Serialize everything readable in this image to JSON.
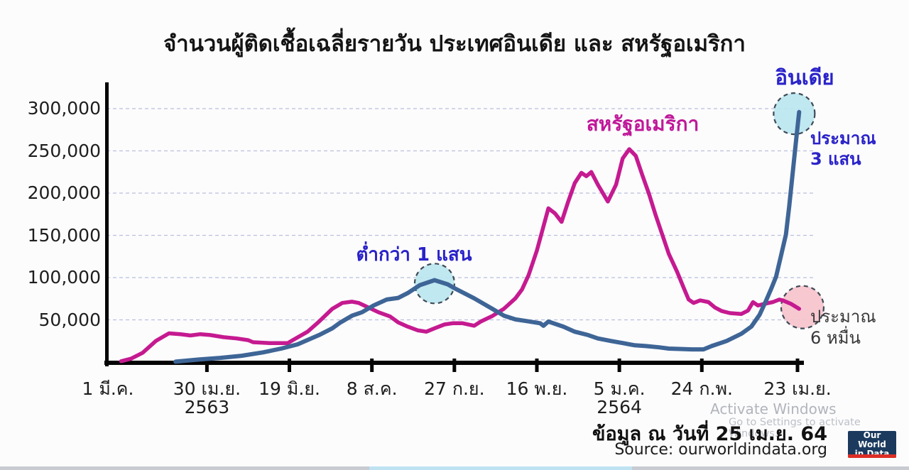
{
  "title": "จำนวนผู้ติดเชื้อเฉลี่ยรายวัน ประเทศอินเดีย และ สหรัฐอเมริกา",
  "chart_data": {
    "type": "line",
    "title": "จำนวนผู้ติดเชื้อเฉลี่ยรายวัน ประเทศอินเดีย และ สหรัฐอเมริกา",
    "x_unit": "days since 1 มี.ค. 2563",
    "x_range": [
      0,
      418
    ],
    "ylim": [
      0,
      330000
    ],
    "grid": "horizontal-dashed",
    "grid_color": "#b9c0dd",
    "yticks": [
      50000,
      100000,
      150000,
      200000,
      250000,
      300000
    ],
    "ytick_labels": [
      "50,000",
      "100,000",
      "150,000",
      "200,000",
      "250,000",
      "300,000"
    ],
    "xticks": [
      {
        "day": 0,
        "label": "1 มี.ค.",
        "tick": false
      },
      {
        "day": 60,
        "label": "30 เม.ย.",
        "tick": true
      },
      {
        "day": 110,
        "label": "19 มิ.ย.",
        "tick": true
      },
      {
        "day": 160,
        "label": "8 ส.ค.",
        "tick": true
      },
      {
        "day": 210,
        "label": "27 ก.ย.",
        "tick": true
      },
      {
        "day": 260,
        "label": "16 พ.ย.",
        "tick": true
      },
      {
        "day": 310,
        "label": "5 ม.ค.",
        "tick": true
      },
      {
        "day": 360,
        "label": "24 ก.พ.",
        "tick": true
      },
      {
        "day": 418,
        "label": "23 เม.ย.",
        "tick": true
      }
    ],
    "year_labels": [
      {
        "day": 60,
        "label": "2563"
      },
      {
        "day": 310,
        "label": "2564"
      }
    ],
    "series": [
      {
        "name": "สหรัฐอเมริกา",
        "color": "#c51a90",
        "stroke_width": 5.5,
        "points": [
          [
            8,
            1000
          ],
          [
            14,
            4000
          ],
          [
            21,
            11000
          ],
          [
            29,
            25000
          ],
          [
            37,
            34000
          ],
          [
            44,
            33000
          ],
          [
            50,
            31500
          ],
          [
            56,
            33000
          ],
          [
            62,
            32000
          ],
          [
            70,
            29500
          ],
          [
            78,
            28000
          ],
          [
            85,
            26000
          ],
          [
            88,
            23500
          ],
          [
            98,
            22500
          ],
          [
            109,
            22500
          ],
          [
            112,
            26000
          ],
          [
            121,
            36000
          ],
          [
            128,
            48000
          ],
          [
            136,
            63000
          ],
          [
            142,
            70000
          ],
          [
            148,
            71500
          ],
          [
            152,
            70000
          ],
          [
            157,
            65500
          ],
          [
            164,
            59000
          ],
          [
            171,
            54000
          ],
          [
            176,
            47000
          ],
          [
            181,
            42500
          ],
          [
            188,
            37500
          ],
          [
            193,
            36000
          ],
          [
            198,
            40000
          ],
          [
            204,
            44500
          ],
          [
            209,
            46000
          ],
          [
            215,
            46000
          ],
          [
            222,
            43000
          ],
          [
            226,
            48000
          ],
          [
            233,
            54500
          ],
          [
            240,
            63000
          ],
          [
            247,
            75500
          ],
          [
            251,
            86000
          ],
          [
            255,
            103000
          ],
          [
            260,
            132000
          ],
          [
            267,
            182000
          ],
          [
            271,
            176000
          ],
          [
            275,
            166000
          ],
          [
            279,
            190000
          ],
          [
            283,
            212000
          ],
          [
            287,
            224000
          ],
          [
            290,
            220000
          ],
          [
            293,
            225000
          ],
          [
            297,
            210000
          ],
          [
            303,
            190000
          ],
          [
            308,
            210000
          ],
          [
            312,
            241000
          ],
          [
            316,
            252000
          ],
          [
            320,
            244000
          ],
          [
            324,
            221000
          ],
          [
            328,
            199000
          ],
          [
            332,
            174000
          ],
          [
            336,
            151000
          ],
          [
            340,
            128000
          ],
          [
            345,
            107000
          ],
          [
            349,
            88000
          ],
          [
            352,
            74000
          ],
          [
            355,
            70000
          ],
          [
            359,
            73000
          ],
          [
            364,
            71000
          ],
          [
            368,
            64500
          ],
          [
            372,
            60500
          ],
          [
            377,
            58000
          ],
          [
            384,
            57000
          ],
          [
            388,
            61000
          ],
          [
            391,
            71000
          ],
          [
            394,
            67000
          ],
          [
            398,
            69000
          ],
          [
            403,
            71000
          ],
          [
            407,
            74000
          ],
          [
            409,
            73000
          ],
          [
            414,
            69000
          ],
          [
            419,
            63000
          ]
        ]
      },
      {
        "name": "อินเดีย",
        "color": "#3e6596",
        "stroke_width": 6,
        "points": [
          [
            41,
            500
          ],
          [
            55,
            3000
          ],
          [
            68,
            5000
          ],
          [
            81,
            7500
          ],
          [
            94,
            11500
          ],
          [
            105,
            16000
          ],
          [
            115,
            21000
          ],
          [
            128,
            32000
          ],
          [
            136,
            40000
          ],
          [
            141,
            47000
          ],
          [
            148,
            55000
          ],
          [
            154,
            59000
          ],
          [
            161,
            67000
          ],
          [
            169,
            74000
          ],
          [
            176,
            76000
          ],
          [
            182,
            82000
          ],
          [
            189,
            91000
          ],
          [
            198,
            97000
          ],
          [
            206,
            92000
          ],
          [
            211,
            86500
          ],
          [
            222,
            75500
          ],
          [
            233,
            63000
          ],
          [
            240,
            55000
          ],
          [
            247,
            50500
          ],
          [
            254,
            48500
          ],
          [
            262,
            46000
          ],
          [
            264,
            43000
          ],
          [
            267,
            48000
          ],
          [
            270,
            46000
          ],
          [
            276,
            42000
          ],
          [
            283,
            36000
          ],
          [
            291,
            32000
          ],
          [
            297,
            28000
          ],
          [
            305,
            25000
          ],
          [
            312,
            22500
          ],
          [
            319,
            20000
          ],
          [
            326,
            19000
          ],
          [
            334,
            17500
          ],
          [
            340,
            16000
          ],
          [
            348,
            15500
          ],
          [
            354,
            15000
          ],
          [
            361,
            15000
          ],
          [
            366,
            19000
          ],
          [
            375,
            25000
          ],
          [
            384,
            33500
          ],
          [
            390,
            42000
          ],
          [
            395,
            56000
          ],
          [
            399,
            73000
          ],
          [
            402,
            86500
          ],
          [
            405,
            101000
          ],
          [
            408,
            126000
          ],
          [
            411,
            151000
          ],
          [
            413,
            185000
          ],
          [
            415,
            222000
          ],
          [
            417,
            260000
          ],
          [
            419,
            296000
          ]
        ]
      }
    ],
    "highlight_circles": [
      {
        "name": "india-peak",
        "day": 198,
        "value": 93000,
        "radius": 28,
        "fill": "#b9e5f0",
        "note": "ต่ำกว่า 1 แสน"
      },
      {
        "name": "india-latest",
        "day": 416,
        "value": 294000,
        "radius": 29,
        "fill": "#b9e5f0",
        "note": "ประมาณ 3 แสน"
      },
      {
        "name": "usa-latest",
        "day": 421,
        "value": 65000,
        "radius": 30,
        "fill": "#f6c2cb",
        "note": "ประมาณ 6 หมื่น"
      }
    ],
    "circle_stroke": "#3f4a56"
  },
  "annotations": {
    "below_100k": "ต่ำกว่า 1 แสน",
    "approx_300k": "ประมาณ\n3 แสน",
    "approx_60k": "ประมาณ\n6 หมื่น"
  },
  "footer": {
    "data_as_of": "ข้อมูล ณ วันที่ 25 เม.ย. 64",
    "source": "Source: ourworldindata.org"
  },
  "logo": {
    "text": "Our World\nin Data"
  },
  "watermark": {
    "line1": "Activate Windows",
    "line2": "Go to Settings to activate Windows."
  }
}
